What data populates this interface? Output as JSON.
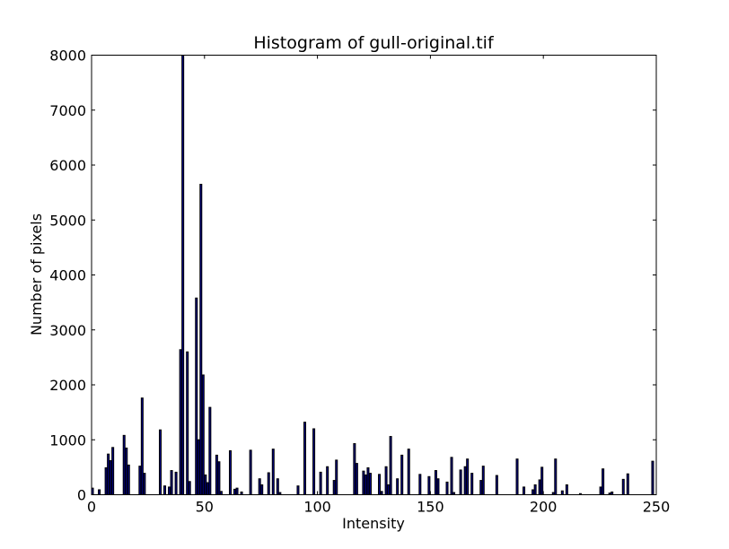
{
  "chart_data": {
    "type": "bar",
    "title": "Histogram of gull-original.tif",
    "xlabel": "Intensity",
    "ylabel": "Number of pixels",
    "xlim": [
      0,
      250
    ],
    "ylim": [
      0,
      8000
    ],
    "xticks": [
      0,
      50,
      100,
      150,
      200,
      250
    ],
    "yticks": [
      0,
      1000,
      2000,
      3000,
      4000,
      5000,
      6000,
      7000,
      8000
    ],
    "grid": false,
    "bar_color": "#00008b",
    "bar_edge_color": "#000000",
    "bars": [
      {
        "x": 0,
        "y": 120
      },
      {
        "x": 3,
        "y": 90
      },
      {
        "x": 6,
        "y": 490
      },
      {
        "x": 7,
        "y": 740
      },
      {
        "x": 8,
        "y": 620
      },
      {
        "x": 9,
        "y": 860
      },
      {
        "x": 14,
        "y": 1080
      },
      {
        "x": 15,
        "y": 850
      },
      {
        "x": 16,
        "y": 540
      },
      {
        "x": 21,
        "y": 520
      },
      {
        "x": 22,
        "y": 1760
      },
      {
        "x": 23,
        "y": 390
      },
      {
        "x": 30,
        "y": 1180
      },
      {
        "x": 32,
        "y": 160
      },
      {
        "x": 34,
        "y": 140
      },
      {
        "x": 35,
        "y": 440
      },
      {
        "x": 37,
        "y": 410
      },
      {
        "x": 39,
        "y": 2640
      },
      {
        "x": 40,
        "y": 8000
      },
      {
        "x": 42,
        "y": 2600
      },
      {
        "x": 43,
        "y": 240
      },
      {
        "x": 46,
        "y": 3580
      },
      {
        "x": 47,
        "y": 1000
      },
      {
        "x": 48,
        "y": 5650
      },
      {
        "x": 49,
        "y": 2180
      },
      {
        "x": 50,
        "y": 360
      },
      {
        "x": 51,
        "y": 220
      },
      {
        "x": 52,
        "y": 1590
      },
      {
        "x": 55,
        "y": 720
      },
      {
        "x": 56,
        "y": 600
      },
      {
        "x": 57,
        "y": 60
      },
      {
        "x": 61,
        "y": 800
      },
      {
        "x": 63,
        "y": 100
      },
      {
        "x": 64,
        "y": 120
      },
      {
        "x": 66,
        "y": 50
      },
      {
        "x": 70,
        "y": 810
      },
      {
        "x": 74,
        "y": 290
      },
      {
        "x": 75,
        "y": 180
      },
      {
        "x": 78,
        "y": 400
      },
      {
        "x": 80,
        "y": 830
      },
      {
        "x": 82,
        "y": 290
      },
      {
        "x": 83,
        "y": 40
      },
      {
        "x": 91,
        "y": 160
      },
      {
        "x": 94,
        "y": 1320
      },
      {
        "x": 98,
        "y": 1200
      },
      {
        "x": 101,
        "y": 410
      },
      {
        "x": 104,
        "y": 510
      },
      {
        "x": 107,
        "y": 260
      },
      {
        "x": 108,
        "y": 630
      },
      {
        "x": 116,
        "y": 930
      },
      {
        "x": 117,
        "y": 570
      },
      {
        "x": 120,
        "y": 430
      },
      {
        "x": 121,
        "y": 360
      },
      {
        "x": 122,
        "y": 490
      },
      {
        "x": 123,
        "y": 390
      },
      {
        "x": 127,
        "y": 370
      },
      {
        "x": 128,
        "y": 60
      },
      {
        "x": 130,
        "y": 510
      },
      {
        "x": 131,
        "y": 180
      },
      {
        "x": 132,
        "y": 1060
      },
      {
        "x": 135,
        "y": 290
      },
      {
        "x": 137,
        "y": 720
      },
      {
        "x": 140,
        "y": 830
      },
      {
        "x": 145,
        "y": 370
      },
      {
        "x": 149,
        "y": 330
      },
      {
        "x": 152,
        "y": 440
      },
      {
        "x": 153,
        "y": 290
      },
      {
        "x": 157,
        "y": 230
      },
      {
        "x": 159,
        "y": 680
      },
      {
        "x": 160,
        "y": 40
      },
      {
        "x": 163,
        "y": 450
      },
      {
        "x": 165,
        "y": 510
      },
      {
        "x": 166,
        "y": 650
      },
      {
        "x": 168,
        "y": 390
      },
      {
        "x": 172,
        "y": 260
      },
      {
        "x": 173,
        "y": 520
      },
      {
        "x": 179,
        "y": 350
      },
      {
        "x": 188,
        "y": 650
      },
      {
        "x": 191,
        "y": 140
      },
      {
        "x": 195,
        "y": 90
      },
      {
        "x": 196,
        "y": 180
      },
      {
        "x": 198,
        "y": 270
      },
      {
        "x": 199,
        "y": 500
      },
      {
        "x": 204,
        "y": 40
      },
      {
        "x": 205,
        "y": 650
      },
      {
        "x": 208,
        "y": 70
      },
      {
        "x": 210,
        "y": 180
      },
      {
        "x": 216,
        "y": 20
      },
      {
        "x": 225,
        "y": 140
      },
      {
        "x": 226,
        "y": 470
      },
      {
        "x": 229,
        "y": 30
      },
      {
        "x": 230,
        "y": 50
      },
      {
        "x": 235,
        "y": 280
      },
      {
        "x": 237,
        "y": 380
      },
      {
        "x": 248,
        "y": 610
      }
    ]
  }
}
